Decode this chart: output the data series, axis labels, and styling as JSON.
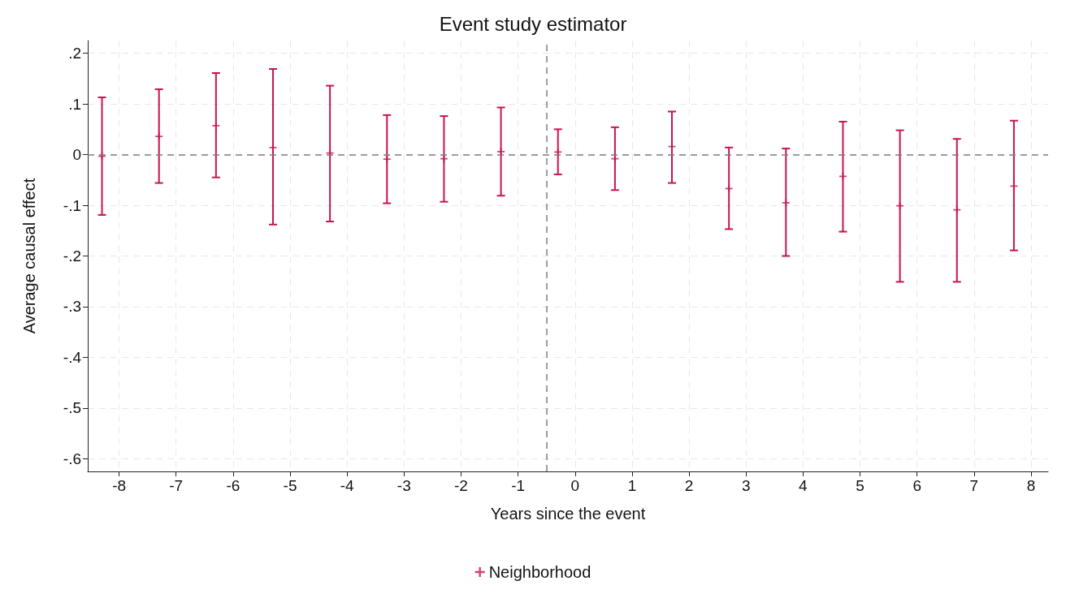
{
  "chart_data": {
    "type": "scatter",
    "title": "Event study estimator",
    "xlabel": "Years since the event",
    "ylabel": "Average causal effect",
    "x": [
      -8.3,
      -7.3,
      -6.3,
      -5.3,
      -4.3,
      -3.3,
      -2.3,
      -1.3,
      -0.3,
      0.7,
      1.7,
      2.7,
      3.7,
      4.7,
      5.7,
      6.7,
      7.7
    ],
    "series": [
      {
        "name": "Neighborhood",
        "color": "#c8134f",
        "values": [
          -0.003,
          0.036,
          0.057,
          0.014,
          0.003,
          -0.009,
          -0.008,
          0.006,
          0.005,
          -0.008,
          0.016,
          -0.067,
          -0.095,
          -0.043,
          -0.101,
          -0.109,
          -0.062
        ],
        "errors": [
          [
            -0.119,
            0.113
          ],
          [
            -0.056,
            0.129
          ],
          [
            -0.045,
            0.161
          ],
          [
            -0.138,
            0.169
          ],
          [
            -0.132,
            0.136
          ],
          [
            -0.096,
            0.078
          ],
          [
            -0.093,
            0.076
          ],
          [
            -0.081,
            0.093
          ],
          [
            -0.039,
            0.05
          ],
          [
            -0.07,
            0.054
          ],
          [
            -0.056,
            0.085
          ],
          [
            -0.147,
            0.014
          ],
          [
            -0.2,
            0.012
          ],
          [
            -0.152,
            0.065
          ],
          [
            -0.251,
            0.048
          ],
          [
            -0.251,
            0.031
          ],
          [
            -0.189,
            0.067
          ]
        ]
      }
    ],
    "xlim": [
      -8.55,
      8.3
    ],
    "xticks": [
      -8,
      -7,
      -6,
      -5,
      -4,
      -3,
      -2,
      -1,
      0,
      1,
      2,
      3,
      4,
      5,
      6,
      7,
      8
    ],
    "ylim": [
      -0.625,
      0.225
    ],
    "yticks": [
      {
        "value": -0.6,
        "label": "-.6"
      },
      {
        "value": -0.5,
        "label": "-.5"
      },
      {
        "value": -0.4,
        "label": "-.4"
      },
      {
        "value": -0.3,
        "label": "-.3"
      },
      {
        "value": -0.2,
        "label": "-.2"
      },
      {
        "value": -0.1,
        "label": "-.1"
      },
      0,
      {
        "value": 0.1,
        "label": ".1"
      },
      {
        "value": 0.2,
        "label": ".2"
      }
    ],
    "ref_lines": [
      {
        "axis": "y",
        "value": 0,
        "color": "#7f7f7f",
        "line_style": "dashed"
      },
      {
        "axis": "x",
        "value": -0.5,
        "color": "#7f7f7f",
        "line_style": "dashed"
      }
    ],
    "grid": true,
    "legend": "bottom",
    "marker": "cross"
  }
}
